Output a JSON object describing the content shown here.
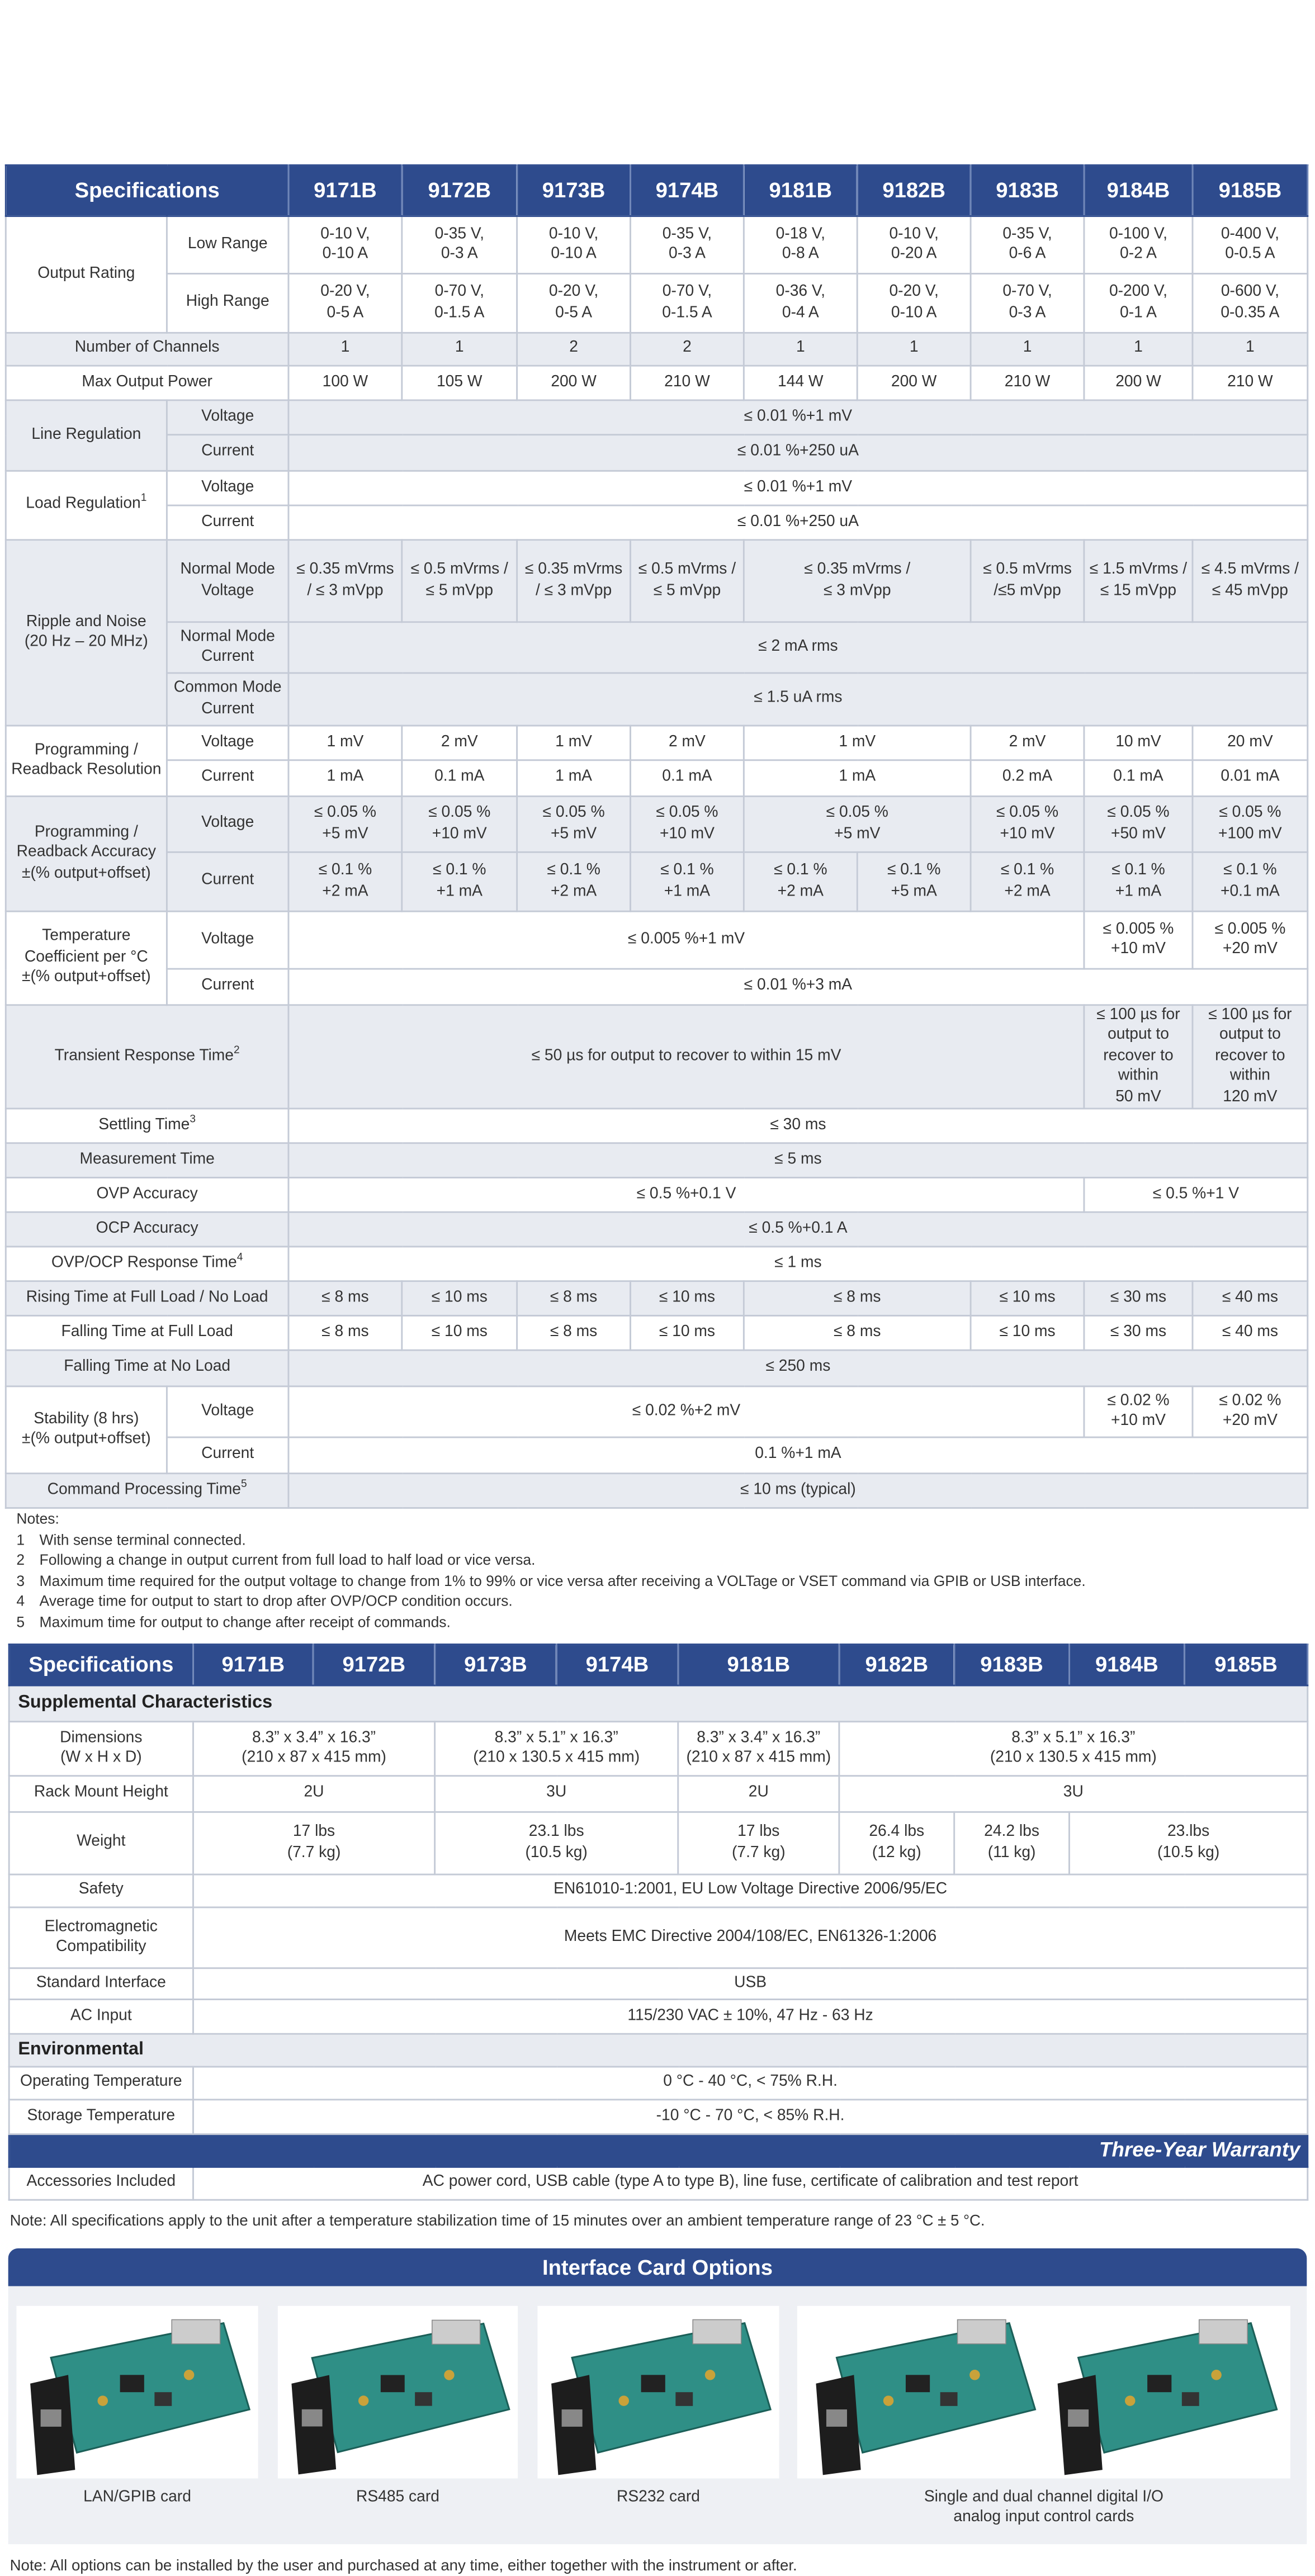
{
  "table1": {
    "header": [
      "Specifications",
      "9171B",
      "9172B",
      "9173B",
      "9174B",
      "9181B",
      "9182B",
      "9183B",
      "9184B",
      "9185B"
    ],
    "rows": [
      [
        "Output Rating",
        "Low Range",
        "0-10 V,\n0-10 A",
        "0-35 V,\n0-3 A",
        "0-10 V,\n0-10 A",
        "0-35 V,\n0-3 A",
        "0-18 V,\n0-8 A",
        "0-10 V,\n0-20 A",
        "0-35 V,\n0-6 A",
        "0-100 V,\n0-2 A",
        "0-400 V,\n0-0.5 A"
      ],
      [
        "High Range",
        "0-20 V,\n0-5 A",
        "0-70 V,\n0-1.5 A",
        "0-20 V,\n0-5 A",
        "0-70 V,\n0-1.5 A",
        "0-36 V,\n0-4 A",
        "0-20 V,\n0-10 A",
        "0-70 V,\n0-3 A",
        "0-200 V,\n0-1 A",
        "0-600 V,\n0-0.35 A"
      ],
      [
        "Number of Channels",
        "1",
        "1",
        "2",
        "2",
        "1",
        "1",
        "1",
        "1",
        "1"
      ],
      [
        "Max Output Power",
        "100 W",
        "105 W",
        "200 W",
        "210 W",
        "144 W",
        "200 W",
        "210 W",
        "200 W",
        "210 W"
      ],
      [
        "Line Regulation",
        "Voltage",
        "≤ 0.01 %+1 mV"
      ],
      [
        "Current",
        "≤ 0.01 %+250 uA"
      ],
      [
        {
          "text": "Load Regulation",
          "sup": "1"
        },
        "Voltage",
        "≤ 0.01 %+1 mV"
      ],
      [
        "Current",
        "≤ 0.01 %+250 uA"
      ],
      [
        "Ripple and Noise\n(20 Hz – 20 MHz)",
        "Normal Mode\nVoltage",
        "≤ 0.35 mVrms\n/ ≤ 3 mVpp",
        "≤ 0.5 mVrms /\n≤ 5 mVpp",
        "≤ 0.35 mVrms\n/ ≤ 3 mVpp",
        "≤ 0.5 mVrms /\n≤ 5 mVpp",
        "≤ 0.35 mVrms /\n≤ 3 mVpp",
        "≤ 0.5 mVrms\n/≤5 mVpp",
        "≤ 1.5 mVrms /\n≤ 15 mVpp",
        "≤ 4.5 mVrms /\n≤ 45 mVpp"
      ],
      [
        "Normal Mode\nCurrent",
        "≤ 2 mA rms"
      ],
      [
        "Common Mode\nCurrent",
        "≤ 1.5 uA rms"
      ],
      [
        "Programming /\nReadback Resolution",
        "Voltage",
        "1 mV",
        "2 mV",
        "1 mV",
        "2 mV",
        "1 mV",
        "2 mV",
        "10 mV",
        "20 mV"
      ],
      [
        "Current",
        "1 mA",
        "0.1 mA",
        "1 mA",
        "0.1 mA",
        "1 mA",
        "0.2 mA",
        "0.1 mA",
        "0.01 mA"
      ],
      [
        "Programming /\nReadback Accuracy\n±(% output+offset)",
        "Voltage",
        "≤ 0.05 %\n+5 mV",
        "≤ 0.05 %\n+10 mV",
        "≤ 0.05 %\n+5 mV",
        "≤ 0.05 %\n+10 mV",
        "≤ 0.05 %\n+5 mV",
        "≤ 0.05 %\n+10 mV",
        "≤ 0.05 %\n+50 mV",
        "≤ 0.05 %\n+100 mV"
      ],
      [
        "Current",
        "≤ 0.1 %\n+2 mA",
        "≤ 0.1 %\n+1 mA",
        "≤ 0.1 %\n+2 mA",
        "≤ 0.1 %\n+1 mA",
        "≤ 0.1 %\n+2 mA",
        "≤ 0.1 %\n+5 mA",
        "≤ 0.1 %\n+2 mA",
        "≤ 0.1 %\n+1 mA",
        "≤ 0.1 %\n+0.1 mA"
      ],
      [
        "Temperature\nCoefficient per °C\n±(% output+offset)",
        "Voltage",
        "≤ 0.005 %+1 mV",
        "≤ 0.005 %\n+10 mV",
        "≤ 0.005 %\n+20 mV"
      ],
      [
        "Current",
        "≤ 0.01 %+3 mA"
      ],
      [
        {
          "text": "Transient Response Time",
          "sup": "2"
        },
        "≤ 50 µs for output to recover to within 15 mV",
        "≤ 100 µs for\noutput to\nrecover to within\n50 mV",
        "≤ 100 µs for\noutput to\nrecover to within\n120 mV"
      ],
      [
        {
          "text": "Settling Time",
          "sup": "3"
        },
        "≤ 30 ms"
      ],
      [
        "Measurement Time",
        "≤ 5 ms"
      ],
      [
        "OVP Accuracy",
        "≤ 0.5 %+0.1 V",
        "≤ 0.5 %+1 V"
      ],
      [
        "OCP Accuracy",
        "≤ 0.5 %+0.1 A"
      ],
      [
        {
          "text": "OVP/OCP Response Time",
          "sup": "4"
        },
        "≤ 1 ms"
      ],
      [
        "Rising Time at Full Load / No Load",
        "≤ 8 ms",
        "≤ 10 ms",
        "≤ 8 ms",
        "≤ 10 ms",
        "≤ 8 ms",
        "≤ 10 ms",
        "≤ 30 ms",
        "≤ 40 ms"
      ],
      [
        "Falling Time at Full Load",
        "≤ 8 ms",
        "≤ 10 ms",
        "≤ 8 ms",
        "≤ 10 ms",
        "≤ 8 ms",
        "≤ 10 ms",
        "≤ 30 ms",
        "≤ 40 ms"
      ],
      [
        "Falling Time at No Load",
        "≤ 250 ms"
      ],
      [
        "Stability (8 hrs)\n±(% output+offset)",
        "Voltage",
        "≤ 0.02 %+2 mV",
        "≤ 0.02 %\n+10 mV",
        "≤ 0.02 %\n+20 mV"
      ],
      [
        "Current",
        "0.1 %+1 mA"
      ],
      [
        {
          "text": "Command Processing Time",
          "sup": "5"
        },
        "≤ 10 ms (typical)"
      ]
    ]
  },
  "notes": {
    "title": "Notes:",
    "items": [
      {
        "num": "1",
        "text": "With sense terminal connected."
      },
      {
        "num": "2",
        "text": "Following a change in output current from full load to half load or vice versa."
      },
      {
        "num": "3",
        "text": "Maximum time required for the output voltage to change from 1% to 99% or vice versa after receiving a VOLTage or VSET command via GPIB or USB interface."
      },
      {
        "num": "4",
        "text": "Average time for output to start to drop after OVP/OCP condition occurs."
      },
      {
        "num": "5",
        "text": "Maximum time for output to change after receipt of commands."
      }
    ]
  },
  "table2": {
    "header": [
      "Specifications",
      "9171B",
      "9172B",
      "9173B",
      "9174B",
      "9181B",
      "9182B",
      "9183B",
      "9184B",
      "9185B"
    ],
    "supplemental": {
      "title": "Supplemental Characteristics",
      "rows": [
        [
          "Dimensions\n(W x H x D)",
          "8.3” x 3.4” x 16.3”\n(210 x 87 x 415 mm)",
          "8.3” x 5.1” x 16.3”\n(210 x 130.5 x 415 mm)",
          "8.3” x 3.4” x 16.3”\n(210 x 87 x 415 mm)",
          "8.3” x 5.1” x 16.3”\n(210 x 130.5 x 415 mm)"
        ],
        [
          "Rack Mount Height",
          "2U",
          "3U",
          "2U",
          "3U"
        ],
        [
          "Weight",
          "17 lbs\n(7.7 kg)",
          "23.1 lbs\n(10.5 kg)",
          "17 lbs\n(7.7 kg)",
          "26.4 lbs\n(12 kg)",
          "24.2 lbs\n(11 kg)",
          "23.lbs\n(10.5 kg)"
        ],
        [
          "Safety",
          "EN61010-1:2001, EU Low Voltage Directive 2006/95/EC"
        ],
        [
          "Electromagnetic\nCompatibility",
          "Meets EMC Directive 2004/108/EC, EN61326-1:2006"
        ],
        [
          "Standard Interface",
          "USB"
        ],
        [
          "AC Input",
          "115/230 VAC ± 10%, 47 Hz - 63 Hz"
        ]
      ]
    },
    "environmental": {
      "title": "Environmental",
      "rows": [
        [
          "Operating Temperature",
          "0 °C - 40 °C, < 75% R.H."
        ],
        [
          "Storage Temperature",
          "-10 °C - 70 °C, < 85% R.H."
        ]
      ]
    },
    "warranty": "Three-Year Warranty",
    "accessories": [
      "Accessories Included",
      "AC power cord, USB cable (type A to type B), line fuse, certificate of calibration and test report"
    ]
  },
  "note": "Note: All specifications apply to the unit after a temperature stabilization time of 15 minutes over an ambient temperature range of 23 °C ± 5 °C.",
  "interface": {
    "title": "Interface Card Options",
    "cards": [
      "LAN/GPIB card",
      "RS485 card",
      "RS232 card",
      "Single and dual channel digital I/O\nanalog input control cards"
    ]
  },
  "footer_note": "Note: All options can be installed by the user and purchased at any time, either together with the instrument or after."
}
